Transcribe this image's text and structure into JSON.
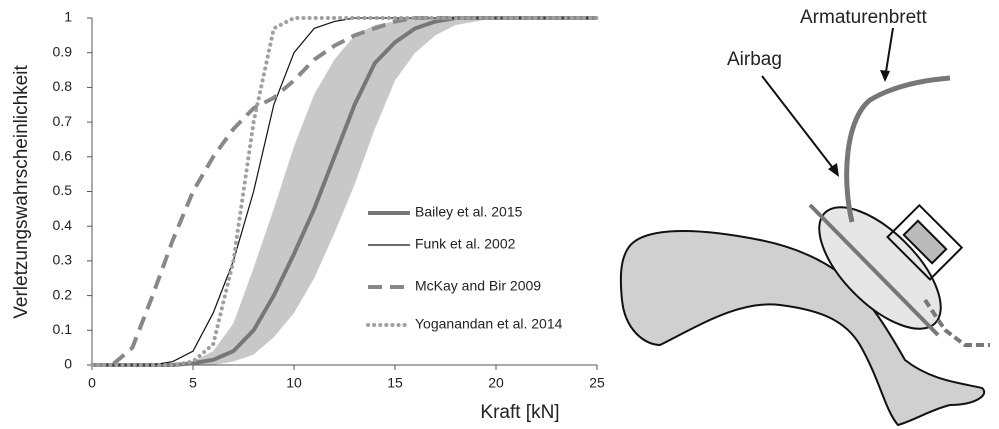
{
  "chart_data": {
    "type": "line",
    "x_label": "Kraft [kN]",
    "y_label": "Verletzungswahrscheinlichkeit",
    "x": [
      0,
      1,
      2,
      3,
      4,
      5,
      6,
      7,
      8,
      9,
      10,
      11,
      12,
      13,
      14,
      15,
      16,
      17,
      18,
      19,
      20,
      21,
      22,
      23,
      24,
      25
    ],
    "xlim": [
      0,
      25
    ],
    "xticks": [
      0,
      5,
      10,
      15,
      20,
      25
    ],
    "ylim": [
      0,
      1
    ],
    "yticks": [
      0,
      0.1,
      0.2,
      0.3,
      0.4,
      0.5,
      0.6,
      0.7,
      0.8,
      0.9,
      1
    ],
    "band": {
      "color": "#c8c8c8",
      "lower": [
        0,
        0,
        0,
        0,
        0,
        0,
        0,
        0.01,
        0.03,
        0.08,
        0.15,
        0.25,
        0.38,
        0.52,
        0.68,
        0.82,
        0.9,
        0.95,
        0.98,
        0.99,
        1,
        1,
        1,
        1,
        1,
        1
      ],
      "upper": [
        0,
        0,
        0,
        0,
        0,
        0.01,
        0.04,
        0.12,
        0.28,
        0.45,
        0.63,
        0.78,
        0.88,
        0.95,
        0.98,
        0.99,
        1,
        1,
        1,
        1,
        1,
        1,
        1,
        1,
        1,
        1
      ]
    },
    "series": [
      {
        "name": "Bailey et al. 2015",
        "color": "#777777",
        "style": "thick",
        "values": [
          0,
          0,
          0,
          0,
          0,
          0.005,
          0.015,
          0.04,
          0.1,
          0.2,
          0.32,
          0.45,
          0.6,
          0.75,
          0.87,
          0.93,
          0.97,
          0.99,
          1,
          1,
          1,
          1,
          1,
          1,
          1,
          1
        ]
      },
      {
        "name": "Funk et al. 2002",
        "color": "#111111",
        "style": "thin",
        "values": [
          0,
          0,
          0,
          0,
          0.01,
          0.04,
          0.15,
          0.3,
          0.5,
          0.75,
          0.9,
          0.97,
          0.99,
          1,
          1,
          1,
          1,
          1,
          1,
          1,
          1,
          1,
          1,
          1,
          1,
          1
        ]
      },
      {
        "name": "McKay and Bir 2009",
        "color": "#888888",
        "style": "dashed",
        "values": [
          0,
          0,
          0.05,
          0.2,
          0.36,
          0.5,
          0.6,
          0.68,
          0.74,
          0.77,
          0.82,
          0.88,
          0.92,
          0.95,
          0.97,
          0.99,
          1,
          1,
          1,
          1,
          1,
          1,
          1,
          1,
          1,
          1
        ]
      },
      {
        "name": "Yoganandan et al. 2014",
        "color": "#a0a0a0",
        "style": "dotted",
        "values": [
          0,
          0,
          0,
          0,
          0,
          0.01,
          0.06,
          0.3,
          0.7,
          0.97,
          1,
          1,
          1,
          1,
          1,
          1,
          1,
          1,
          1,
          1,
          1,
          1,
          1,
          1,
          1,
          1
        ]
      }
    ]
  },
  "diagram": {
    "labels": [
      "Armaturenbrett",
      "Airbag"
    ]
  }
}
